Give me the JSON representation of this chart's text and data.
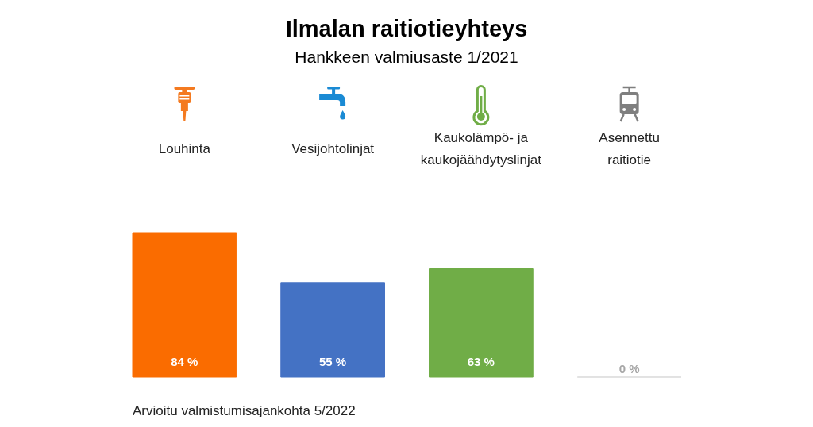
{
  "chart_data": {
    "type": "bar",
    "title": "Ilmalan raitiotieyhteys",
    "subtitle": "Hankkeen valmiusaste 1/2021",
    "categories": [
      "Louhinta",
      "Vesijohtolinjat",
      "Kaukolämpö- ja kaukojäähdytyslinjat",
      "Asennettu raitiotie"
    ],
    "values": [
      84,
      55,
      63,
      0
    ],
    "colors": [
      "#fa6c00",
      "#4472c4",
      "#70ad47",
      "#d9d9d9"
    ],
    "value_labels": [
      "84 %",
      "55 %",
      "63 %",
      "0 %"
    ],
    "tick_labels": "x",
    "annotations": [
      "Arvioitu valmistumisajankohta 5/2022"
    ]
  }
}
